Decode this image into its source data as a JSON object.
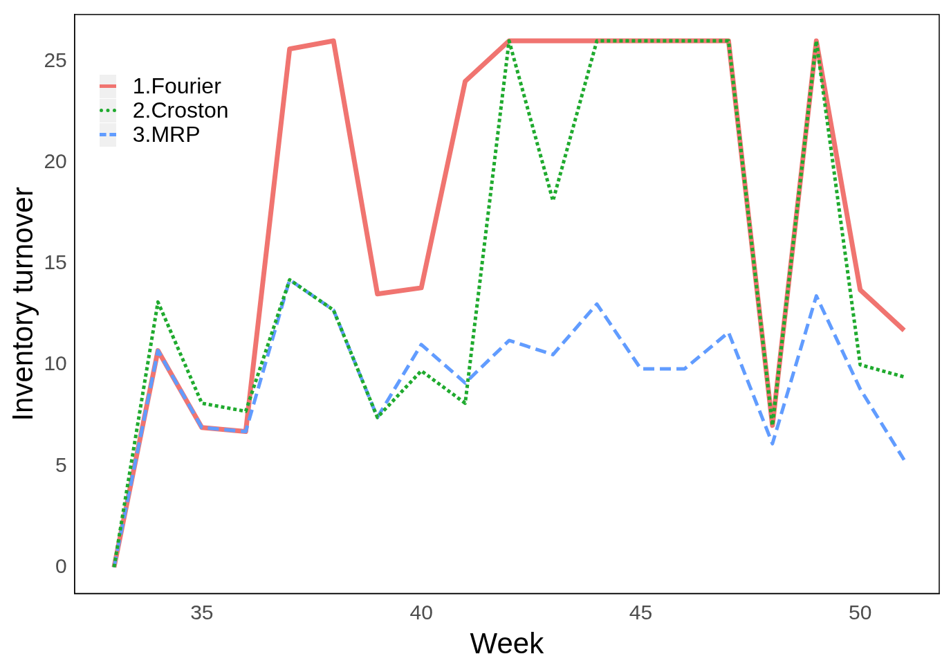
{
  "chart_data": {
    "type": "line",
    "xlabel": "Week",
    "ylabel": "Inventory turnover",
    "x": [
      33,
      34,
      35,
      36,
      37,
      38,
      39,
      40,
      41,
      42,
      43,
      44,
      45,
      46,
      47,
      48,
      49,
      50,
      51
    ],
    "series": [
      {
        "name": "1.Fourier",
        "color": "#f07470",
        "line_style": "solid",
        "values": [
          0,
          10.7,
          6.9,
          6.7,
          25.6,
          26,
          13.5,
          13.8,
          24,
          26,
          26,
          26,
          26,
          26,
          26,
          7,
          26,
          13.7,
          11.7
        ]
      },
      {
        "name": "2.Croston",
        "color": "#1faa2e",
        "line_style": "dotted",
        "values": [
          0,
          13.1,
          8.1,
          7.7,
          14.2,
          12.7,
          7.4,
          9.7,
          8.1,
          26,
          18.1,
          26,
          26,
          26,
          26,
          7,
          26,
          10,
          9.4
        ]
      },
      {
        "name": "3.MRP",
        "color": "#619cff",
        "line_style": "dashed",
        "values": [
          0,
          10.7,
          6.9,
          6.7,
          14.2,
          12.7,
          7.4,
          11,
          9.1,
          11.2,
          10.5,
          13,
          9.8,
          9.8,
          11.6,
          6.1,
          13.4,
          8.8,
          5.3
        ]
      }
    ],
    "xlim": [
      32.1,
      51.8
    ],
    "xticks": [
      35,
      40,
      45,
      50
    ],
    "ylim": [
      -1.3,
      27.3
    ],
    "yticks": [
      0,
      5,
      10,
      15,
      20,
      25
    ],
    "grid": false,
    "legend": "top left",
    "marker": "none"
  }
}
